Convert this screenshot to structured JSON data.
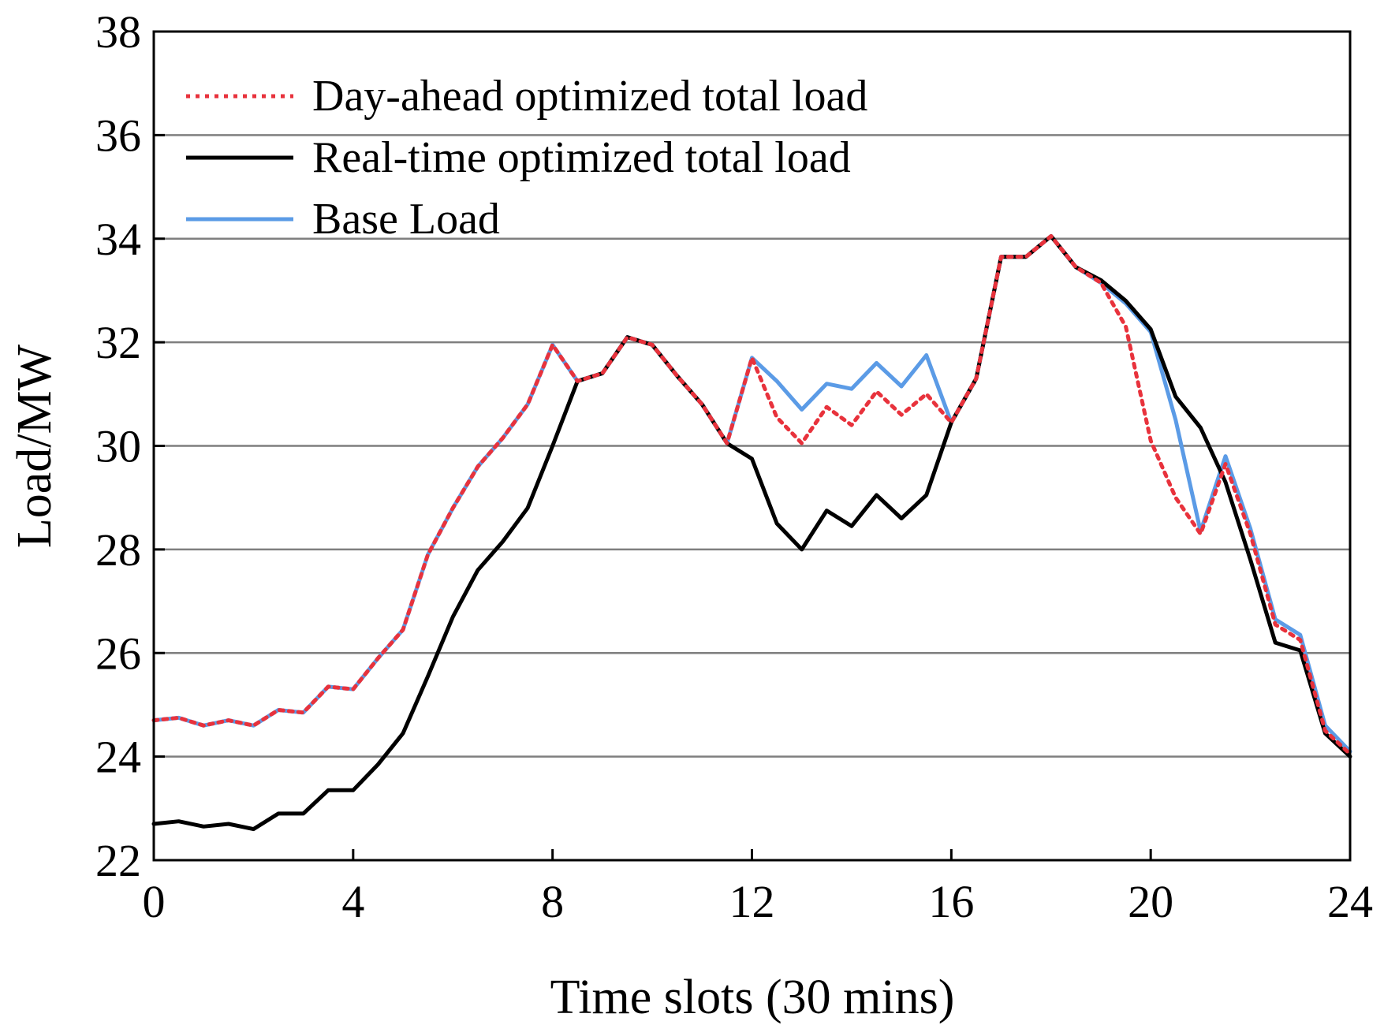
{
  "chart_data": {
    "type": "line",
    "title": "",
    "xlabel": "Time slots (30 mins)",
    "ylabel": "Load/MW",
    "xlim": [
      0,
      24
    ],
    "ylim": [
      22,
      38
    ],
    "xticks": [
      0,
      4,
      8,
      12,
      16,
      20,
      24
    ],
    "yticks": [
      22,
      24,
      26,
      28,
      30,
      32,
      34,
      36,
      38
    ],
    "grid": "horizontal",
    "legend_position": "top-left",
    "x": [
      0,
      0.5,
      1,
      1.5,
      2,
      2.5,
      3,
      3.5,
      4,
      4.5,
      5,
      5.5,
      6,
      6.5,
      7,
      7.5,
      8,
      8.5,
      9,
      9.5,
      10,
      10.5,
      11,
      11.5,
      12,
      12.5,
      13,
      13.5,
      14,
      14.5,
      15,
      15.5,
      16,
      16.5,
      17,
      17.5,
      18,
      18.5,
      19,
      19.5,
      20,
      20.5,
      21,
      21.5,
      22,
      22.5,
      23,
      23.5,
      24
    ],
    "series": [
      {
        "name": "Day-ahead optimized total load",
        "color": "#e8323c",
        "style": "dotted",
        "values": [
          24.7,
          24.75,
          24.6,
          24.7,
          24.6,
          24.9,
          24.85,
          25.35,
          25.3,
          25.9,
          26.45,
          27.9,
          28.8,
          29.6,
          30.15,
          30.8,
          31.95,
          31.25,
          31.4,
          32.1,
          31.95,
          31.35,
          30.8,
          30.05,
          31.7,
          30.55,
          30.05,
          30.75,
          30.4,
          31.05,
          30.6,
          31.0,
          30.45,
          31.3,
          33.65,
          33.65,
          34.05,
          33.45,
          33.15,
          32.3,
          30.1,
          29.0,
          28.3,
          29.65,
          28.3,
          26.55,
          26.25,
          24.5,
          24.05
        ]
      },
      {
        "name": "Real-time optimized total load",
        "color": "#000000",
        "style": "solid",
        "values": [
          22.7,
          22.75,
          22.65,
          22.7,
          22.6,
          22.9,
          22.9,
          23.35,
          23.35,
          23.85,
          24.45,
          25.55,
          26.7,
          27.6,
          28.15,
          28.8,
          30.0,
          31.25,
          31.4,
          32.1,
          31.95,
          31.35,
          30.8,
          30.05,
          29.75,
          28.5,
          28.0,
          28.75,
          28.45,
          29.05,
          28.6,
          29.05,
          30.45,
          31.3,
          33.65,
          33.65,
          34.05,
          33.45,
          33.2,
          32.8,
          32.25,
          30.95,
          30.35,
          29.3,
          27.8,
          26.2,
          26.05,
          24.45,
          24.0
        ]
      },
      {
        "name": "Base Load",
        "color": "#5b9be6",
        "style": "solid",
        "values": [
          24.7,
          24.75,
          24.6,
          24.7,
          24.6,
          24.9,
          24.85,
          25.35,
          25.3,
          25.9,
          26.45,
          27.9,
          28.8,
          29.6,
          30.15,
          30.8,
          31.95,
          31.25,
          31.4,
          32.1,
          31.95,
          31.35,
          30.8,
          30.05,
          31.7,
          31.25,
          30.7,
          31.2,
          31.1,
          31.6,
          31.15,
          31.75,
          30.45,
          31.3,
          33.65,
          33.65,
          34.05,
          33.45,
          33.15,
          32.75,
          32.2,
          30.5,
          28.35,
          29.8,
          28.4,
          26.65,
          26.35,
          24.6,
          24.1
        ]
      }
    ]
  }
}
